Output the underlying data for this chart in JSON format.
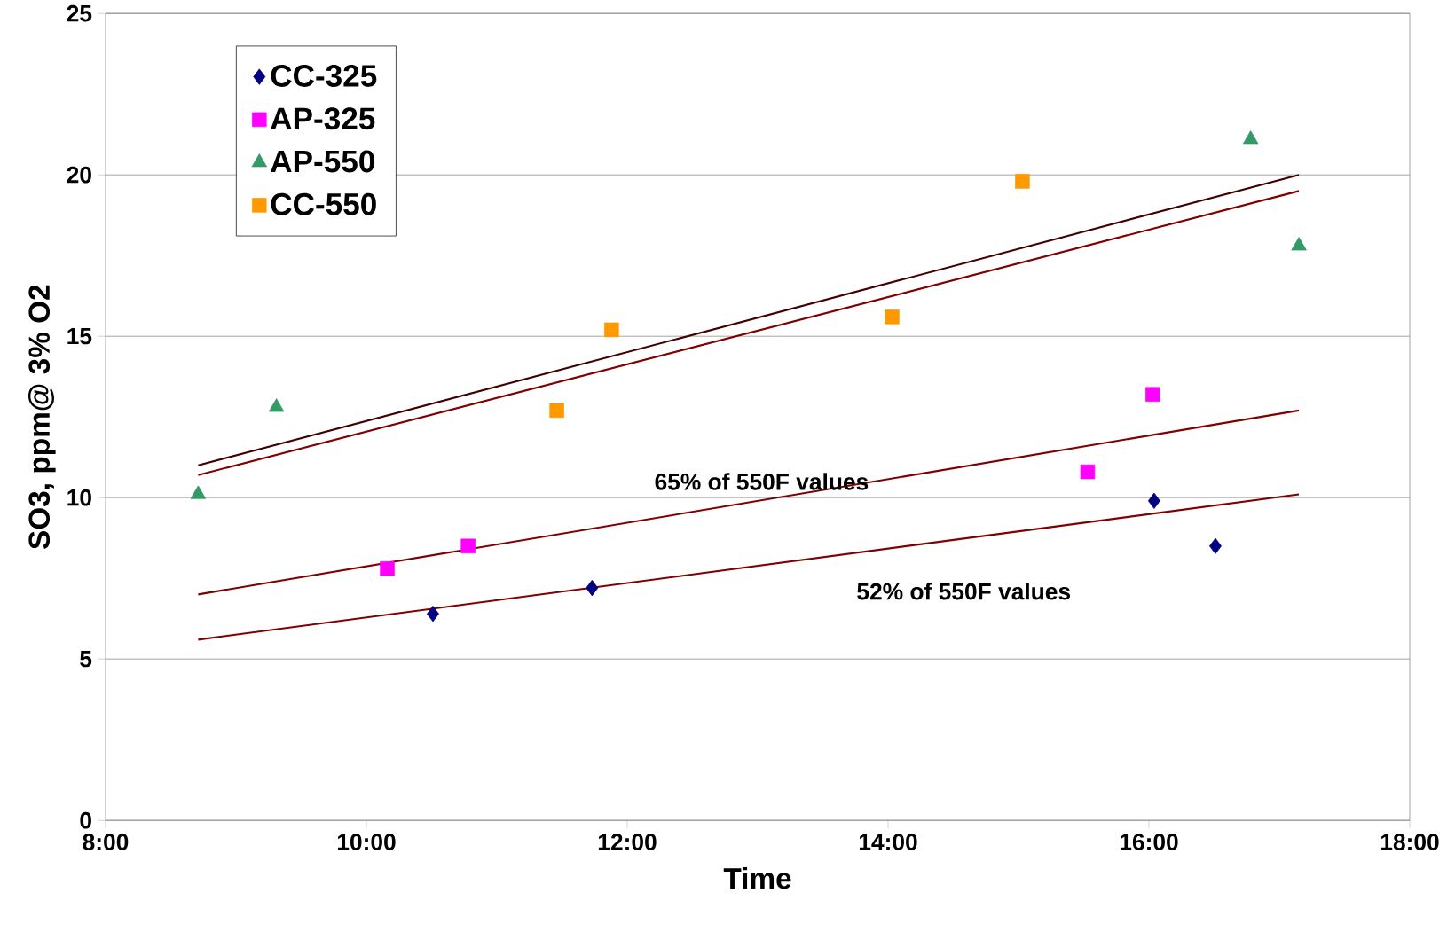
{
  "chart_data": {
    "type": "scatter",
    "xlabel": "Time",
    "ylabel": "SO3, ppm@ 3% O2",
    "xlim": [
      8,
      18
    ],
    "ylim": [
      0,
      25
    ],
    "xticks": [
      {
        "value": 8,
        "label": "8:00"
      },
      {
        "value": 10,
        "label": "10:00"
      },
      {
        "value": 12,
        "label": "12:00"
      },
      {
        "value": 14,
        "label": "14:00"
      },
      {
        "value": 16,
        "label": "16:00"
      },
      {
        "value": 18,
        "label": "18:00"
      }
    ],
    "yticks": [
      0,
      5,
      10,
      15,
      20,
      25
    ],
    "grid": "y",
    "legend": "top left",
    "series": [
      {
        "name": "CC-325",
        "color": "#000080",
        "marker": "diamond",
        "x": [
          10.51,
          11.73,
          16.04,
          16.51
        ],
        "values": [
          6.4,
          7.2,
          9.9,
          8.5
        ]
      },
      {
        "name": "AP-325",
        "color": "#ff00ff",
        "marker": "square",
        "x": [
          10.16,
          10.78,
          15.53,
          16.03
        ],
        "values": [
          7.8,
          8.5,
          10.8,
          13.2
        ]
      },
      {
        "name": "AP-550",
        "color": "#339966",
        "marker": "triangle",
        "x": [
          8.71,
          9.31,
          16.78,
          17.15
        ],
        "values": [
          10.1,
          12.8,
          21.1,
          17.8
        ]
      },
      {
        "name": "CC-550",
        "color": "#ff9900",
        "marker": "square",
        "x": [
          11.46,
          11.88,
          14.03,
          15.03
        ],
        "values": [
          12.7,
          15.2,
          15.6,
          19.8
        ]
      },
      {
        "type": "line",
        "color": "#400000",
        "marker": "none",
        "x": [
          8.71,
          17.15
        ],
        "values": [
          11.0,
          20.0
        ]
      },
      {
        "type": "line",
        "color": "#800000",
        "marker": "none",
        "x": [
          8.71,
          17.15
        ],
        "values": [
          10.7,
          19.5
        ]
      },
      {
        "type": "line",
        "color": "#800000",
        "marker": "none",
        "x": [
          8.71,
          17.15
        ],
        "values": [
          7.0,
          12.7
        ]
      },
      {
        "type": "line",
        "color": "#800000",
        "marker": "none",
        "x": [
          8.71,
          17.15
        ],
        "values": [
          5.6,
          10.1
        ]
      }
    ],
    "annotations": [
      "65% of 550F values",
      "52% of 550F values"
    ]
  }
}
